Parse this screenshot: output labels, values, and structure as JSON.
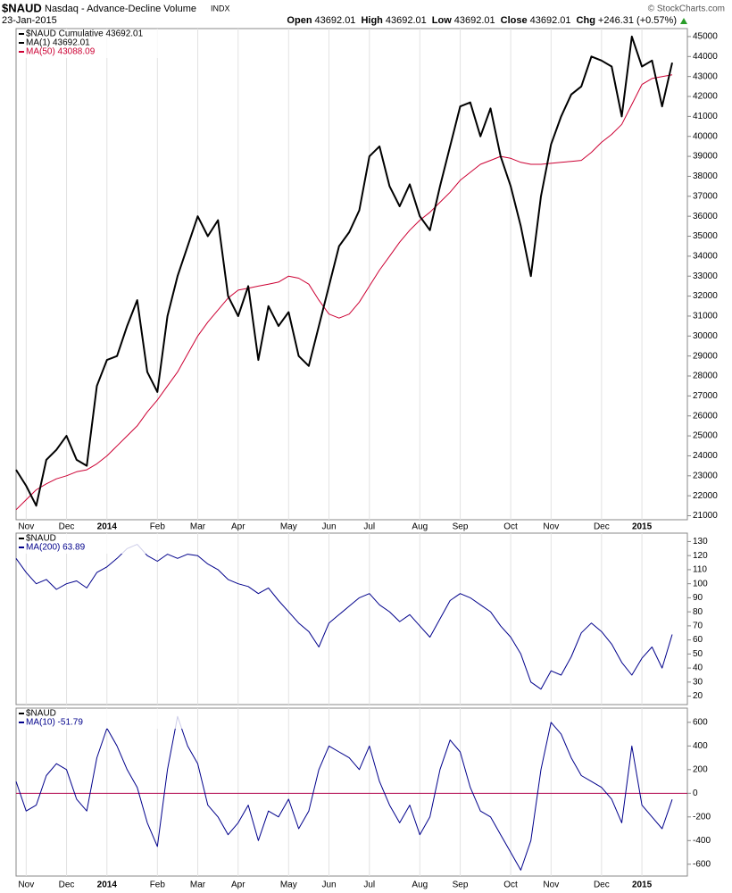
{
  "header": {
    "symbol": "$NAUD",
    "name": "Nasdaq - Advance-Decline Volume",
    "exchange": "INDX",
    "date": "23-Jan-2015",
    "copyright": "© StockCharts.com",
    "quote": [
      {
        "label": "Open",
        "value": "43692.01"
      },
      {
        "label": "High",
        "value": "43692.01"
      },
      {
        "label": "Low",
        "value": "43692.01"
      },
      {
        "label": "Close",
        "value": "43692.01"
      },
      {
        "label": "Chg",
        "value": "+246.31 (+0.57%)"
      }
    ]
  },
  "chart_data": [
    {
      "type": "line",
      "label": "$NAUD Cumulative 43692.01",
      "categories": [
        null,
        "Nov",
        null,
        null,
        null,
        "Dec",
        null,
        null,
        null,
        "2014",
        null,
        null,
        null,
        null,
        "Feb",
        null,
        null,
        null,
        "Mar",
        null,
        null,
        null,
        "Apr",
        null,
        null,
        null,
        null,
        "May",
        null,
        null,
        null,
        "Jun",
        null,
        null,
        null,
        "Jul",
        null,
        null,
        null,
        null,
        "Aug",
        null,
        null,
        null,
        "Sep",
        null,
        null,
        null,
        null,
        "Oct",
        null,
        null,
        null,
        "Nov",
        null,
        null,
        null,
        null,
        "Dec",
        null,
        null,
        null,
        "2015",
        null,
        null,
        null
      ],
      "series": [
        {
          "name": "MA(1) 43692.01",
          "color": "#000000",
          "width": 2,
          "values": [
            23300,
            22500,
            21500,
            23800,
            24300,
            25000,
            23800,
            23500,
            27500,
            28800,
            29000,
            30500,
            31800,
            28200,
            27200,
            31000,
            33000,
            34500,
            36000,
            35000,
            35800,
            32000,
            31000,
            32500,
            28800,
            31500,
            30500,
            31200,
            29000,
            28500,
            30500,
            32500,
            34500,
            35200,
            36300,
            39000,
            39500,
            37500,
            36500,
            37600,
            36000,
            35300,
            37500,
            39500,
            41500,
            41700,
            40000,
            41400,
            39000,
            37500,
            35500,
            33000,
            37000,
            39600,
            41000,
            42100,
            42500,
            44000,
            43800,
            43500,
            41000,
            45000,
            43500,
            43800,
            41500,
            43692.01
          ]
        },
        {
          "name": "MA(50) 43088.09",
          "color": "#cc0033",
          "width": 1,
          "values": [
            21300,
            21800,
            22300,
            22600,
            22850,
            23000,
            23200,
            23300,
            23600,
            24000,
            24500,
            25000,
            25500,
            26200,
            26800,
            27500,
            28200,
            29100,
            30000,
            30700,
            31300,
            31900,
            32300,
            32400,
            32500,
            32600,
            32700,
            33000,
            32900,
            32600,
            31800,
            31100,
            30900,
            31100,
            31700,
            32500,
            33300,
            34000,
            34700,
            35300,
            35800,
            36200,
            36700,
            37200,
            37800,
            38200,
            38600,
            38800,
            39000,
            38900,
            38700,
            38600,
            38600,
            38650,
            38700,
            38750,
            38800,
            39200,
            39700,
            40100,
            40600,
            41600,
            42600,
            42900,
            43000,
            43088.09
          ]
        }
      ],
      "ylim": [
        20800,
        45400
      ],
      "yticks": [
        21000,
        22000,
        23000,
        24000,
        25000,
        26000,
        27000,
        28000,
        29000,
        30000,
        31000,
        32000,
        33000,
        34000,
        35000,
        36000,
        37000,
        38000,
        39000,
        40000,
        41000,
        42000,
        43000,
        44000,
        45000
      ]
    },
    {
      "type": "line",
      "label": "$NAUD",
      "series": [
        {
          "name": "MA(200) 63.89",
          "color": "#00008b",
          "width": 1,
          "values": [
            118,
            108,
            100,
            103,
            96,
            100,
            102,
            97,
            108,
            112,
            118,
            125,
            128,
            120,
            116,
            121,
            118,
            121,
            120,
            114,
            110,
            103,
            100,
            98,
            93,
            97,
            88,
            80,
            72,
            66,
            55,
            72,
            78,
            84,
            90,
            93,
            85,
            80,
            73,
            78,
            70,
            62,
            75,
            88,
            93,
            90,
            85,
            80,
            70,
            62,
            50,
            30,
            25,
            38,
            35,
            48,
            65,
            72,
            66,
            57,
            44,
            35,
            47,
            55,
            40,
            63.89
          ]
        }
      ],
      "ylim": [
        14,
        136
      ],
      "yticks": [
        20,
        30,
        40,
        50,
        60,
        70,
        80,
        90,
        100,
        110,
        120,
        130
      ]
    },
    {
      "type": "line",
      "label": "$NAUD",
      "zero_line_color": "#b0004a",
      "categories": [
        null,
        "Nov",
        null,
        null,
        null,
        "Dec",
        null,
        null,
        null,
        "2014",
        null,
        null,
        null,
        null,
        "Feb",
        null,
        null,
        null,
        "Mar",
        null,
        null,
        null,
        "Apr",
        null,
        null,
        null,
        null,
        "May",
        null,
        null,
        null,
        "Jun",
        null,
        null,
        null,
        "Jul",
        null,
        null,
        null,
        null,
        "Aug",
        null,
        null,
        null,
        "Sep",
        null,
        null,
        null,
        null,
        "Oct",
        null,
        null,
        null,
        "Nov",
        null,
        null,
        null,
        null,
        "Dec",
        null,
        null,
        null,
        "2015",
        null,
        null,
        null
      ],
      "series": [
        {
          "name": "MA(10) -51.79",
          "color": "#00008b",
          "width": 1,
          "values": [
            100,
            -150,
            -100,
            150,
            250,
            200,
            -50,
            -150,
            300,
            550,
            400,
            200,
            50,
            -250,
            -450,
            200,
            650,
            400,
            250,
            -100,
            -200,
            -350,
            -250,
            -100,
            -400,
            -150,
            -200,
            -50,
            -300,
            -150,
            200,
            400,
            350,
            300,
            200,
            400,
            100,
            -100,
            -250,
            -100,
            -350,
            -200,
            200,
            450,
            350,
            50,
            -150,
            -200,
            -350,
            -500,
            -650,
            -400,
            200,
            600,
            500,
            300,
            150,
            100,
            50,
            -50,
            -250,
            400,
            -100,
            -200,
            -300,
            -51.79
          ]
        }
      ],
      "ylim": [
        -700,
        720
      ],
      "yticks": [
        -600,
        -400,
        -200,
        0,
        200,
        400,
        600
      ]
    }
  ]
}
